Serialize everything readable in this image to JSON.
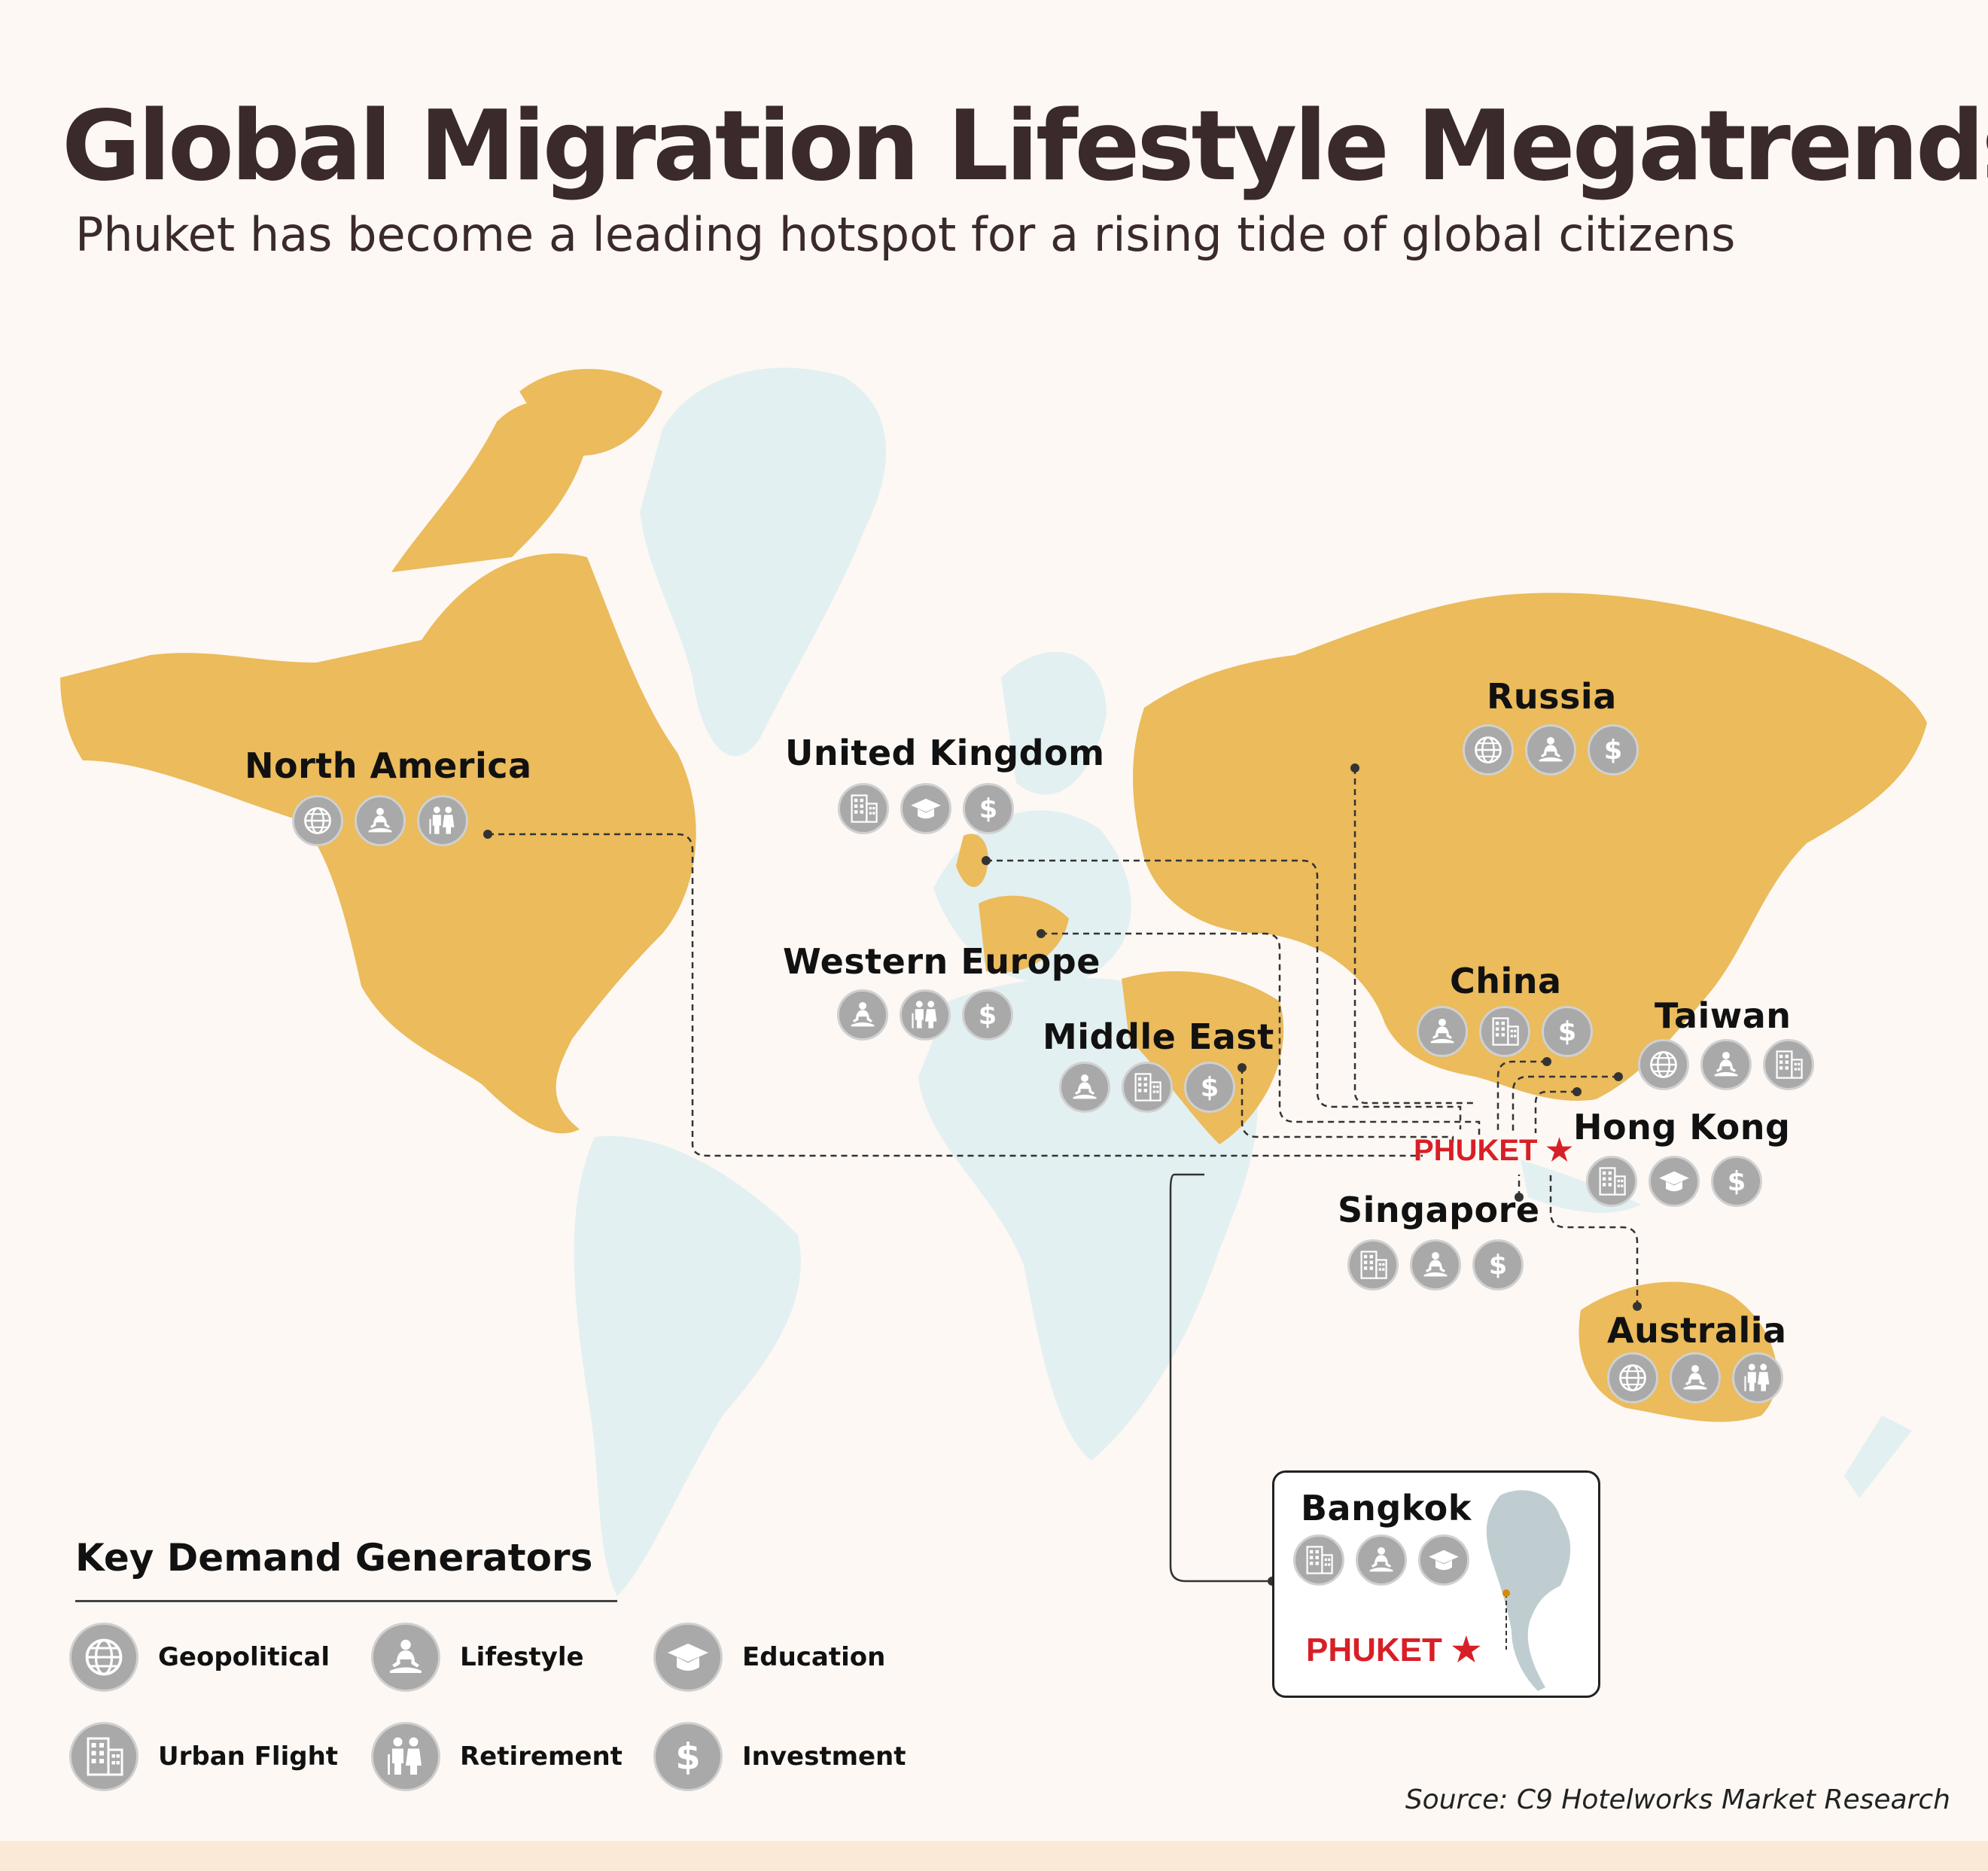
{
  "title": "Global Migration Lifestyle Megatrends",
  "subtitle": "Phuket has become a leading hotspot for a rising tide of global citizens",
  "colors": {
    "land": "#ebbb5c",
    "ocean_land": "#e3f0f1",
    "accent": "#d81f26",
    "icon": "#a9a9a9"
  },
  "regions": [
    {
      "name": "North America",
      "icons": [
        "globe-icon",
        "lifestyle-icon",
        "retirement-icon"
      ]
    },
    {
      "name": "United Kingdom",
      "icons": [
        "building-icon",
        "graduation-cap-icon",
        "dollar-icon"
      ]
    },
    {
      "name": "Western Europe",
      "icons": [
        "lifestyle-icon",
        "retirement-icon",
        "dollar-icon"
      ]
    },
    {
      "name": "Middle East",
      "icons": [
        "lifestyle-icon",
        "building-icon",
        "dollar-icon"
      ]
    },
    {
      "name": "Russia",
      "icons": [
        "globe-icon",
        "lifestyle-icon",
        "dollar-icon"
      ]
    },
    {
      "name": "China",
      "icons": [
        "lifestyle-icon",
        "building-icon",
        "dollar-icon"
      ]
    },
    {
      "name": "Taiwan",
      "icons": [
        "globe-icon",
        "lifestyle-icon",
        "building-icon"
      ]
    },
    {
      "name": "Hong Kong",
      "icons": [
        "building-icon",
        "graduation-cap-icon",
        "dollar-icon"
      ]
    },
    {
      "name": "Singapore",
      "icons": [
        "building-icon",
        "lifestyle-icon",
        "dollar-icon"
      ]
    },
    {
      "name": "Australia",
      "icons": [
        "globe-icon",
        "lifestyle-icon",
        "retirement-icon"
      ]
    },
    {
      "name": "Bangkok",
      "icons": [
        "building-icon",
        "lifestyle-icon",
        "graduation-cap-icon"
      ]
    }
  ],
  "phuket_label": "PHUKET",
  "key": {
    "title": "Key Demand Generators",
    "items": [
      {
        "label": "Geopolitical",
        "icon": "globe-icon"
      },
      {
        "label": "Lifestyle",
        "icon": "lifestyle-icon"
      },
      {
        "label": "Education",
        "icon": "graduation-cap-icon"
      },
      {
        "label": "Urban Flight",
        "icon": "building-icon"
      },
      {
        "label": "Retirement",
        "icon": "retirement-icon"
      },
      {
        "label": "Investment",
        "icon": "dollar-icon"
      }
    ]
  },
  "source": "Source: C9 Hotelworks Market Research"
}
